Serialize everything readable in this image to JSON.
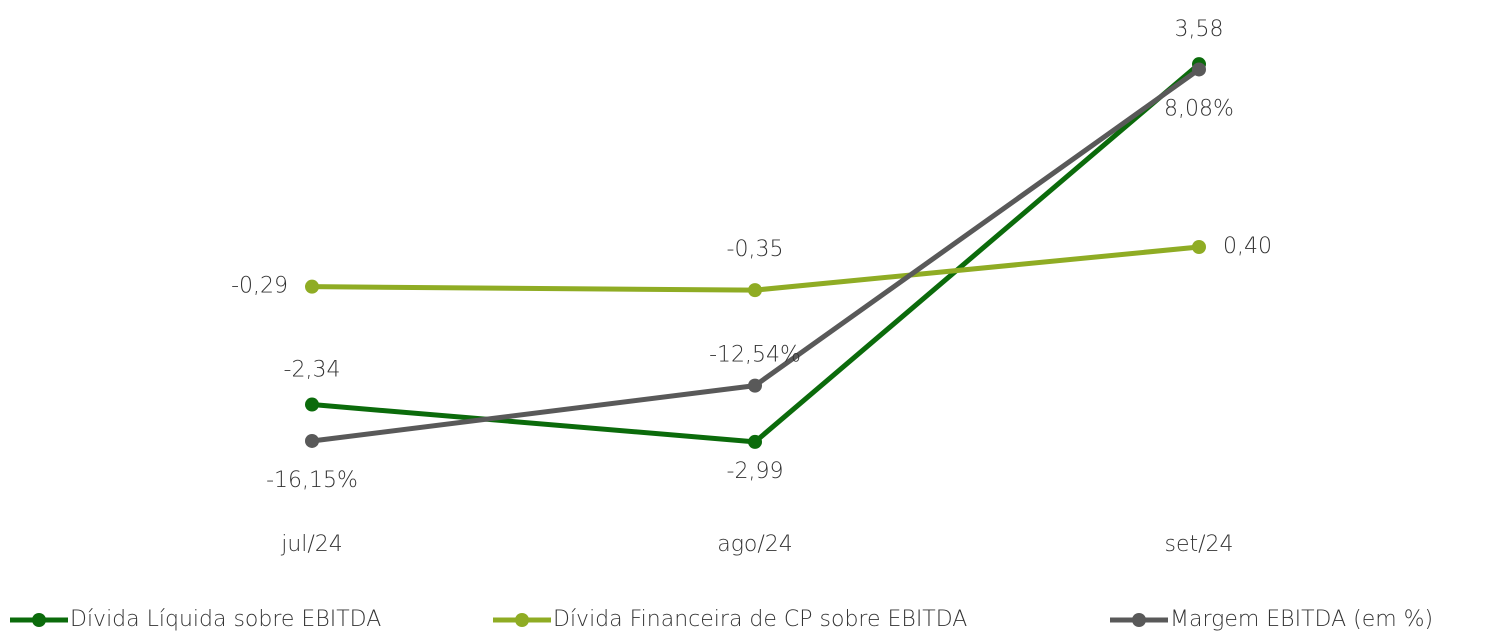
{
  "chart_data": {
    "type": "line",
    "categories": [
      "jul/24",
      "ago/24",
      "set/24"
    ],
    "ylim": [
      -4,
      4
    ],
    "y2lim": [
      -20,
      10
    ],
    "series": [
      {
        "name": "Dívida Líquida sobre EBITDA",
        "color": "#0b6b0b",
        "values": [
          -2.34,
          -2.99,
          3.58
        ],
        "value_labels": [
          "-2,34",
          "-2,99",
          "3,58"
        ]
      },
      {
        "name": "Dívida Financeira de CP sobre EBITDA",
        "color": "#8fac24",
        "values": [
          -0.29,
          -0.35,
          0.4
        ],
        "value_labels": [
          "-0,29",
          "-0,35",
          "0,40"
        ]
      },
      {
        "name": "Margem EBITDA (em %)",
        "color": "#595959",
        "axis": "y2",
        "values": [
          -16.15,
          -12.54,
          8.08
        ],
        "value_labels": [
          "-16,15%",
          "-12,54%",
          "8,08%"
        ]
      }
    ]
  }
}
